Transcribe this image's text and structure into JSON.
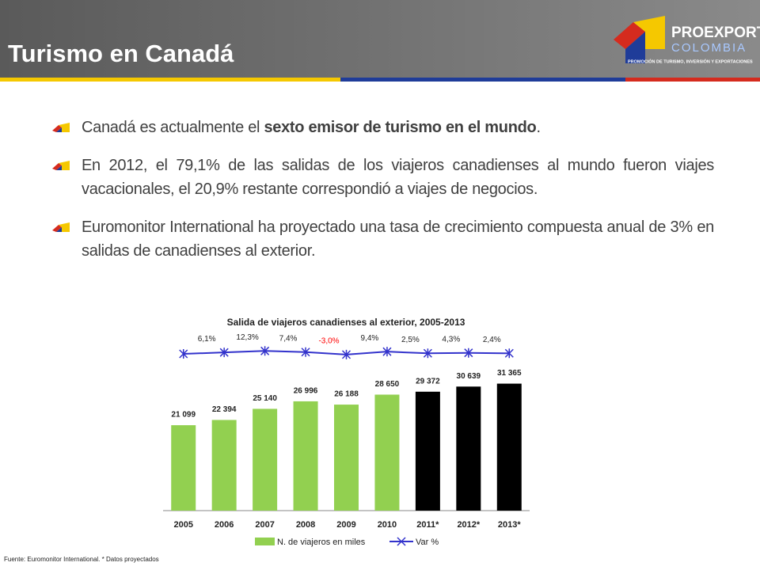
{
  "header": {
    "title": "Turismo en Canadá"
  },
  "logo": {
    "name": "PROEXPORT",
    "country": "COLOMBIA",
    "tagline": "PROMOCIÓN DE TURISMO, INVERSIÓN Y EXPORTACIONES"
  },
  "bullets": [
    [
      {
        "text": "Canadá es actualmente el ",
        "bold": false
      },
      {
        "text": "sexto emisor de turismo en el mundo",
        "bold": true
      },
      {
        "text": ".",
        "bold": false
      }
    ],
    [
      {
        "text": "En 2012, el 79,1% de las salidas de los viajeros canadienses al mundo fueron viajes vacacionales, el 20,9% restante correspondió a viajes de negocios.",
        "bold": false
      }
    ],
    [
      {
        "text": "Euromonitor International ha proyectado una tasa de crecimiento compuesta anual de 3% en salidas de canadienses al exterior.",
        "bold": false
      }
    ]
  ],
  "footnote": "Fuente: Euromonitor International. * Datos proyectados",
  "chart_data": {
    "type": "bar",
    "title": "Salida de viajeros canadienses al exterior, 2005-2013",
    "categories": [
      "2005",
      "2006",
      "2007",
      "2008",
      "2009",
      "2010",
      "2011*",
      "2012*",
      "2013*"
    ],
    "series": [
      {
        "name": "N. de viajeros en miles",
        "type": "bar",
        "color": "#92d050",
        "colors": [
          "#92d050",
          "#92d050",
          "#92d050",
          "#92d050",
          "#92d050",
          "#92d050",
          "#000000",
          "#000000",
          "#000000"
        ],
        "values": [
          21099,
          22394,
          25140,
          26996,
          26188,
          28650,
          29372,
          30639,
          31365
        ],
        "value_labels": [
          "21 099",
          "22 394",
          "25 140",
          "26 996",
          "26 188",
          "28 650",
          "29 372",
          "30 639",
          "31 365"
        ]
      },
      {
        "name": "Var %",
        "type": "line",
        "axis": "y2",
        "color": "#3333cc",
        "negative_label_color": "#ff0000",
        "values": [
          0,
          6.1,
          12.3,
          7.4,
          -3.0,
          9.4,
          2.5,
          4.3,
          2.4
        ],
        "value_labels": [
          null,
          "6,1%",
          "12,3%",
          "7,4%",
          "-3,0%",
          "9,4%",
          "2,5%",
          "4,3%",
          "2,4%"
        ]
      }
    ],
    "ylim": [
      0,
      35000
    ],
    "y2lim": [
      -60,
      60
    ],
    "grid": false
  }
}
